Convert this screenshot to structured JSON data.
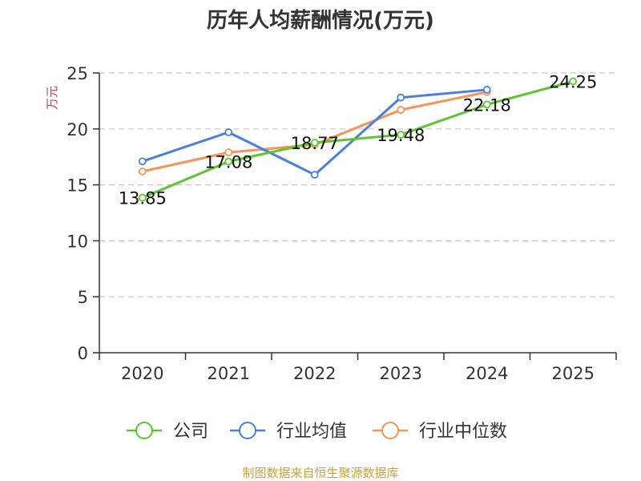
{
  "chart_data": {
    "type": "line",
    "title": "历年人均薪酬情况(万元)",
    "ylabel": "万元",
    "categories": [
      "2020",
      "2021",
      "2022",
      "2023",
      "2024",
      "2025"
    ],
    "ylim": [
      0,
      25
    ],
    "yticks": [
      0,
      5,
      10,
      15,
      20,
      25
    ],
    "grid": true,
    "legend_position": "bottom",
    "series": [
      {
        "name": "公司",
        "color": "#5cc531",
        "values": [
          13.85,
          17.08,
          18.77,
          19.48,
          22.18,
          24.25
        ],
        "labels": [
          "13.85",
          "17.08",
          "18.77",
          "19.48",
          "22.18",
          "24.25"
        ]
      },
      {
        "name": "行业均值",
        "color": "#4a7fdc",
        "values": [
          17.1,
          19.7,
          15.9,
          22.8,
          23.5,
          null
        ]
      },
      {
        "name": "行业中位数",
        "color": "#f5955a",
        "values": [
          16.2,
          17.9,
          18.6,
          21.7,
          23.3,
          null
        ]
      }
    ],
    "source": "制图数据来自恒生聚源数据库"
  }
}
